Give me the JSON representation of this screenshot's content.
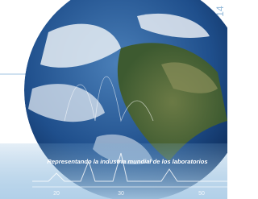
{
  "cover": {
    "page_number": "14",
    "tagline": "Representando la industria mundial de los laboratorios",
    "scale_labels": [
      "20",
      "30",
      "50"
    ]
  }
}
